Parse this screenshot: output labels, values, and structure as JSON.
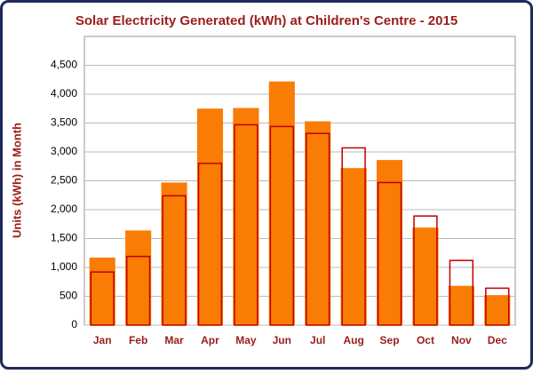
{
  "chart_data": {
    "type": "bar",
    "title": "Solar Electricity Generated (kWh) at Children's Centre - 2015",
    "y_label": "Units (kWh) in Month",
    "categories": [
      "Jan",
      "Feb",
      "Mar",
      "Apr",
      "May",
      "Jun",
      "Jul",
      "Aug",
      "Sep",
      "Oct",
      "Nov",
      "Dec"
    ],
    "series": [
      {
        "color": "#f97c05",
        "values": [
          1170,
          1640,
          2470,
          3750,
          3760,
          4220,
          3530,
          2720,
          2860,
          1690,
          680,
          520
        ]
      },
      {
        "color": "#c00000",
        "values": [
          920,
          1190,
          2240,
          2800,
          3470,
          3440,
          3320,
          3070,
          2470,
          1890,
          1120,
          640
        ]
      }
    ],
    "ylim": [
      0,
      5000
    ],
    "yticks": [
      0,
      {
        "value": 500,
        "label": "500"
      },
      {
        "value": 1000,
        "label": "1,000"
      },
      {
        "value": 1500,
        "label": "1,500"
      },
      {
        "value": 2000,
        "label": "2,000"
      },
      {
        "value": 2500,
        "label": "2,500"
      },
      {
        "value": 3000,
        "label": "3,000"
      },
      {
        "value": 3500,
        "label": "3,500"
      },
      {
        "value": 4000,
        "label": "4,000"
      },
      {
        "value": 4500,
        "label": "4,500"
      }
    ],
    "grid": true
  }
}
